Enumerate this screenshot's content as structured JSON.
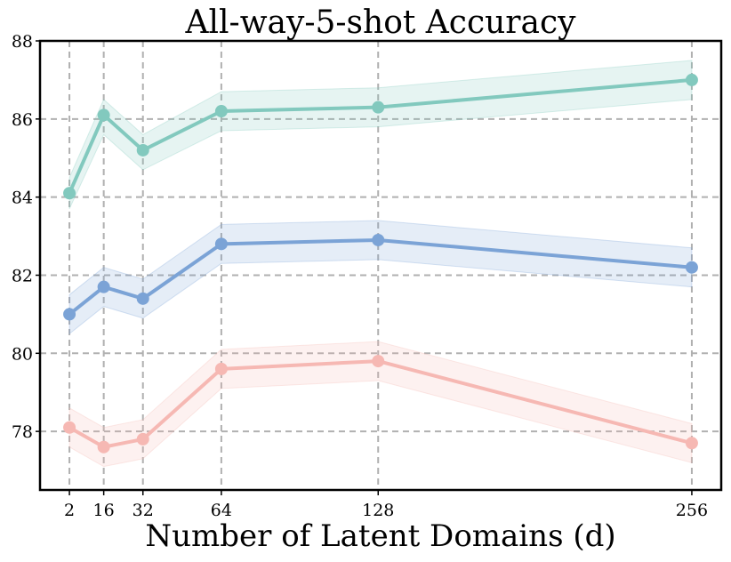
{
  "chart_data": {
    "type": "line",
    "title": "All-way-5-shot Accuracy",
    "xlabel": "Number of Latent Domains (d)",
    "ylabel": "",
    "x": [
      2,
      16,
      32,
      64,
      128,
      256
    ],
    "xticks": [
      "2",
      "16",
      "32",
      "64",
      "128",
      "256"
    ],
    "yticks": [
      "78",
      "80",
      "82",
      "84",
      "86",
      "88"
    ],
    "ylim": [
      76.5,
      88
    ],
    "xlim": [
      -10,
      268
    ],
    "grid": true,
    "series": [
      {
        "values": [
          84.1,
          86.1,
          85.2,
          86.2,
          86.3,
          87.0
        ],
        "lower": [
          83.7,
          85.6,
          84.7,
          85.7,
          85.8,
          86.5
        ],
        "upper": [
          84.5,
          86.5,
          85.6,
          86.7,
          86.8,
          87.5
        ],
        "color": "#82c9be"
      },
      {
        "values": [
          81.0,
          81.7,
          81.4,
          82.8,
          82.9,
          82.2
        ],
        "lower": [
          80.5,
          81.2,
          80.9,
          82.3,
          82.4,
          81.7
        ],
        "upper": [
          81.5,
          82.2,
          81.9,
          83.3,
          83.4,
          82.7
        ],
        "color": "#7ba3d6"
      },
      {
        "values": [
          78.1,
          77.6,
          77.8,
          79.6,
          79.8,
          77.7
        ],
        "lower": [
          77.6,
          77.1,
          77.3,
          79.1,
          79.3,
          77.2
        ],
        "upper": [
          78.6,
          78.1,
          78.3,
          80.1,
          80.3,
          78.2
        ],
        "color": "#f6b8b3"
      }
    ]
  }
}
